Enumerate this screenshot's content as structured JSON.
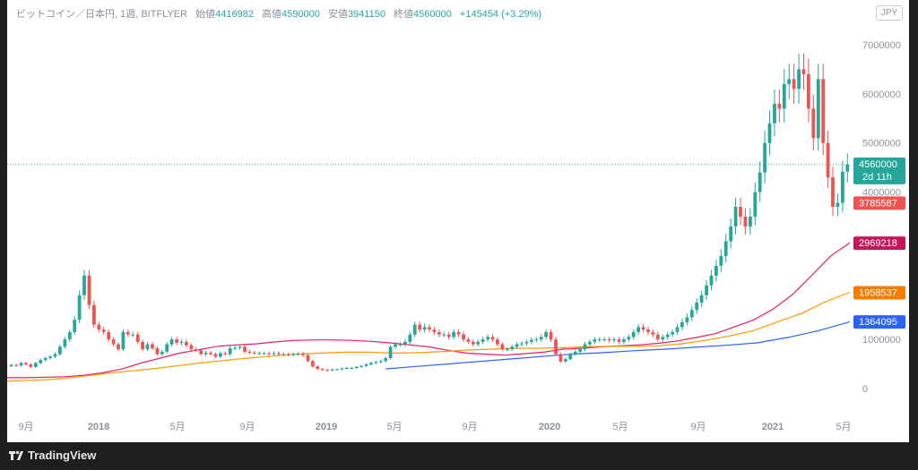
{
  "header": {
    "symbol": "ビットコイン／日本円, 1週, BITFLYER",
    "open_label": "始値",
    "open_value": "4416982",
    "high_label": "高値",
    "high_value": "4590000",
    "low_label": "安値",
    "low_value": "3941150",
    "close_label": "終値",
    "close_value": "4560000",
    "change": "+145454 (+3.29%)",
    "currency": "JPY"
  },
  "footer": {
    "brand": "TradingView"
  },
  "chart_data": {
    "type": "candlestick",
    "x_tick_labels": [
      "9月",
      "2018",
      "5月",
      "9月",
      "2019",
      "5月",
      "9月",
      "2020",
      "5月",
      "9月",
      "2021",
      "5月"
    ],
    "y_tick_labels": [
      "7000000",
      "6000000",
      "5000000",
      "4000000",
      "1000000",
      "0"
    ],
    "y_ticks": [
      7000000,
      6000000,
      5000000,
      4000000,
      1000000,
      0
    ],
    "ylim": [
      0,
      7500000
    ],
    "x_period": [
      "2017-08",
      "2021-05"
    ],
    "current_price": 4560000,
    "price_labels": [
      {
        "value": "4560000",
        "subtext": "2d 11h",
        "price": 4560000,
        "color": "#26a69a"
      },
      {
        "value": "3785587",
        "price": 3785587,
        "color": "#ef5350"
      },
      {
        "value": "2969218",
        "price": 2969218,
        "color": "#c2185b"
      },
      {
        "value": "1958537",
        "price": 1958537,
        "color": "#f57c00"
      },
      {
        "value": "1364095",
        "price": 1364095,
        "color": "#2962ff"
      }
    ],
    "up_color": "#26a69a",
    "down_color": "#ef5350",
    "closes_weekly": [
      480000,
      470000,
      520000,
      490000,
      440000,
      520000,
      580000,
      620000,
      650000,
      700000,
      850000,
      1000000,
      1150000,
      1400000,
      1900000,
      2300000,
      1700000,
      1300000,
      1200000,
      1150000,
      1000000,
      900000,
      800000,
      1150000,
      1100000,
      1100000,
      950000,
      800000,
      900000,
      820000,
      700000,
      750000,
      900000,
      1000000,
      930000,
      950000,
      880000,
      800000,
      780000,
      700000,
      730000,
      700000,
      650000,
      720000,
      700000,
      820000,
      830000,
      850000,
      750000,
      730000,
      720000,
      720000,
      720000,
      700000,
      720000,
      700000,
      700000,
      690000,
      700000,
      710000,
      680000,
      560000,
      450000,
      400000,
      380000,
      370000,
      390000,
      390000,
      410000,
      420000,
      420000,
      440000,
      460000,
      490000,
      520000,
      540000,
      560000,
      620000,
      850000,
      900000,
      900000,
      950000,
      1100000,
      1300000,
      1200000,
      1250000,
      1200000,
      1150000,
      1100000,
      1100000,
      1050000,
      1150000,
      1100000,
      1000000,
      950000,
      900000,
      950000,
      1000000,
      1050000,
      1000000,
      900000,
      800000,
      800000,
      850000,
      900000,
      920000,
      950000,
      990000,
      1000000,
      1050000,
      1150000,
      1000000,
      700000,
      550000,
      600000,
      700000,
      750000,
      800000,
      900000,
      950000,
      1000000,
      1000000,
      1000000,
      980000,
      1000000,
      950000,
      1000000,
      1050000,
      1150000,
      1250000,
      1200000,
      1150000,
      1100000,
      1000000,
      1050000,
      1100000,
      1150000,
      1250000,
      1350000,
      1450000,
      1600000,
      1750000,
      1900000,
      2100000,
      2300000,
      2500000,
      2700000,
      3000000,
      3300000,
      3700000,
      3500000,
      3300000,
      3500000,
      4000000,
      4400000,
      5000000,
      5400000,
      5800000,
      5700000,
      6200000,
      6300000,
      6100000,
      6500000,
      6400000,
      5700000,
      5100000,
      6300000,
      5000000,
      4300000,
      3700000,
      3780000,
      4416982,
      4560000
    ],
    "ma_series": [
      {
        "color": "#e91e63",
        "length": "short",
        "values": [
          0.22,
          0.22,
          0.23,
          0.24,
          0.27,
          0.32,
          0.4,
          0.52,
          0.62,
          0.72,
          0.79,
          0.86,
          0.89,
          0.91,
          0.95,
          0.98,
          0.99,
          0.99,
          0.98,
          0.96,
          0.93,
          0.89,
          0.85,
          0.78,
          0.72,
          0.7,
          0.68,
          0.71,
          0.74,
          0.8,
          0.82,
          0.85,
          0.87,
          0.89,
          0.92,
          0.97,
          1.04,
          1.12,
          1.26,
          1.4,
          1.62,
          1.91,
          2.3,
          2.7,
          2.97
        ]
      },
      {
        "color": "#ff9800",
        "length": "mid",
        "values": [
          0.15,
          0.17,
          0.19,
          0.24,
          0.3,
          0.35,
          0.4,
          0.46,
          0.52,
          0.57,
          0.62,
          0.66,
          0.7,
          0.72,
          0.74,
          0.74,
          0.72,
          0.73,
          0.75,
          0.78,
          0.8,
          0.82,
          0.82,
          0.83,
          0.85,
          0.86,
          0.86,
          0.87,
          0.91,
          0.98,
          1.07,
          1.18,
          1.36,
          1.53,
          1.77,
          1.96
        ]
      },
      {
        "color": "#2962ff",
        "length": "long",
        "values": [
          0.4,
          0.45,
          0.5,
          0.55,
          0.6,
          0.65,
          0.7,
          0.73,
          0.77,
          0.8,
          0.84,
          0.88,
          0.93,
          1.04,
          1.18,
          1.36
        ]
      }
    ]
  }
}
